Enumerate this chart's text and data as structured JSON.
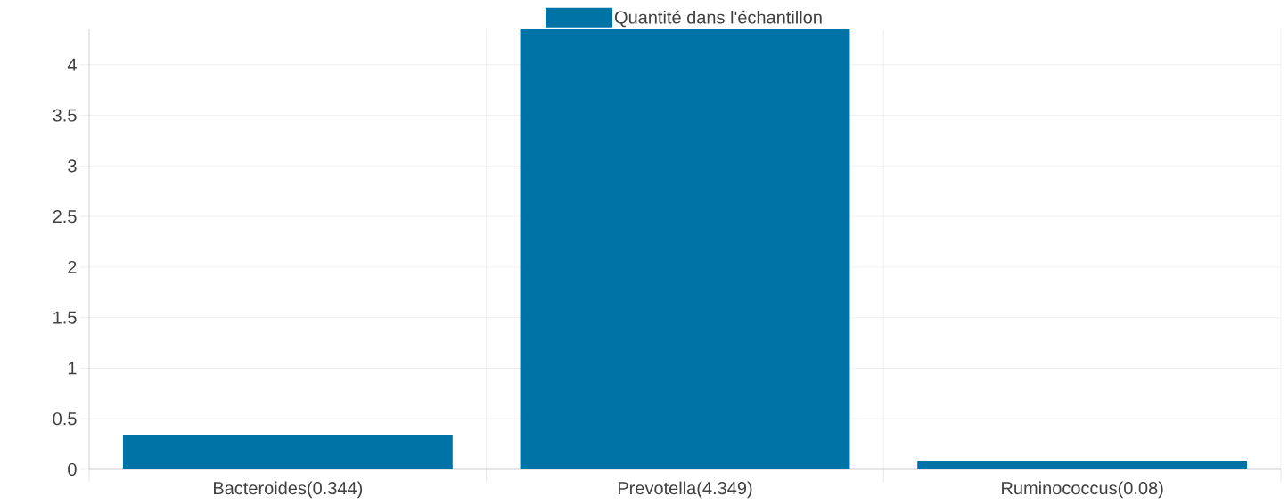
{
  "chart_data": {
    "type": "bar",
    "categories": [
      "Bacteroides(0.344)",
      "Prevotella(4.349)",
      "Ruminococcus(0.08)"
    ],
    "series": [
      {
        "name": "Quantité dans l'échantillon",
        "color": "#0073a6",
        "values": [
          0.344,
          4.349,
          0.08
        ]
      }
    ],
    "ylim": [
      0,
      4.35
    ],
    "yticks": [
      0,
      0.5,
      1,
      1.5,
      2,
      2.5,
      3,
      3.5,
      4
    ],
    "grid": true,
    "legend": "top"
  }
}
